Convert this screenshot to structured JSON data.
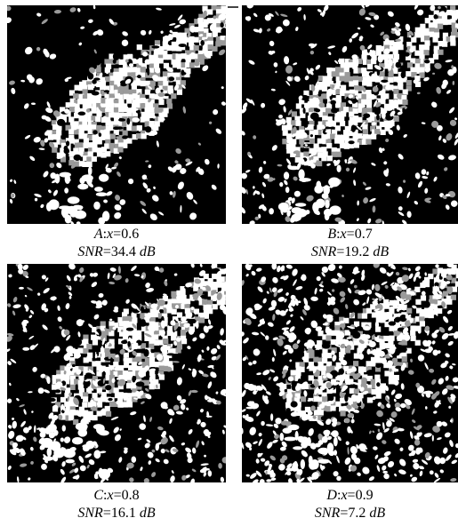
{
  "figure": {
    "panels": [
      {
        "id": "a",
        "letter": "A",
        "x_label": "x",
        "x_value": "0.6",
        "snr_label": "SNR",
        "snr_value": "34.4",
        "snr_unit": "dB",
        "noise_fraction": 0.6
      },
      {
        "id": "b",
        "letter": "B",
        "x_label": "x",
        "x_value": "0.7",
        "snr_label": "SNR",
        "snr_value": "19.2",
        "snr_unit": "dB",
        "noise_fraction": 0.7
      },
      {
        "id": "c",
        "letter": "C",
        "x_label": "x",
        "x_value": "0.8",
        "snr_label": "SNR",
        "snr_value": "16.1",
        "snr_unit": "dB",
        "noise_fraction": 0.8
      },
      {
        "id": "d",
        "letter": "D",
        "x_label": "x",
        "x_value": "0.9",
        "snr_label": "SNR",
        "snr_value": "7.2",
        "snr_unit": "dB",
        "noise_fraction": 0.9
      }
    ],
    "colors": {
      "background": "#000000",
      "foreground": "#ffffff",
      "texture": "#9a9a9a"
    }
  }
}
